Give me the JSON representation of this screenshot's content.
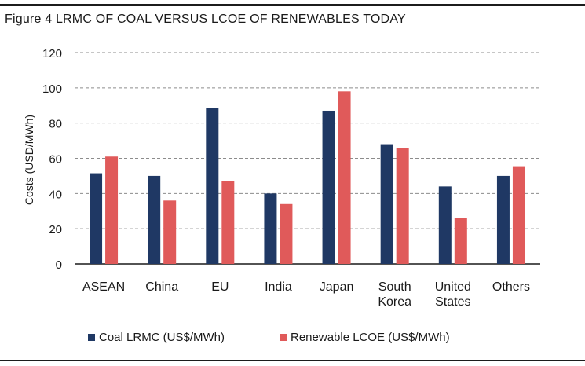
{
  "title": "Figure 4 LRMC OF COAL VERSUS LCOE OF RENEWABLES TODAY",
  "chart_data": {
    "type": "bar",
    "title": "Figure 4 LRMC OF COAL VERSUS LCOE OF RENEWABLES TODAY",
    "xlabel": "",
    "ylabel": "Costs (USD/MWh)",
    "ylim": [
      0,
      120
    ],
    "yticks": [
      0,
      20,
      40,
      60,
      80,
      100,
      120
    ],
    "grid": true,
    "legend_position": "bottom",
    "categories": [
      [
        "ASEAN"
      ],
      [
        "China"
      ],
      [
        "EU"
      ],
      [
        "India"
      ],
      [
        "Japan"
      ],
      [
        "South",
        "Korea"
      ],
      [
        "United",
        "States"
      ],
      [
        "Others"
      ]
    ],
    "series": [
      {
        "name": "Coal LRMC (US$/MWh)",
        "color": "#1f3864",
        "values": [
          51.5,
          50,
          88.5,
          40,
          87,
          68,
          44,
          50
        ]
      },
      {
        "name": "Renewable LCOE (US$/MWh)",
        "color": "#e05a5a",
        "values": [
          61,
          36,
          47,
          34,
          98,
          66,
          26,
          55.5
        ]
      }
    ]
  }
}
